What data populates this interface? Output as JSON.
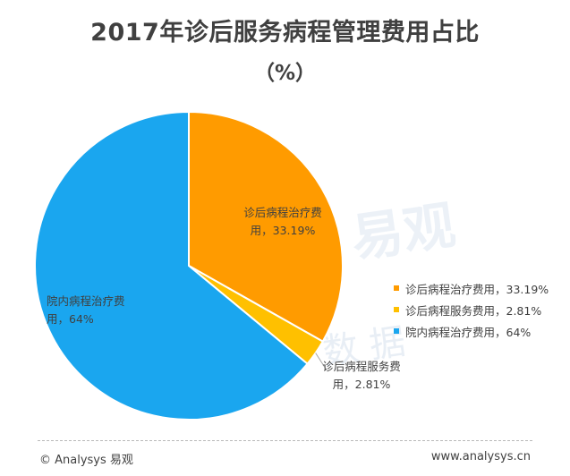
{
  "chart_data": {
    "type": "pie",
    "title": "2017年诊后服务病程管理费用占比",
    "subtitle": "（%）",
    "legend_position": "right",
    "slices": [
      {
        "label": "诊后病程治疗费用",
        "value": 33.19,
        "value_text": "33.19%",
        "color": "#ff9b00",
        "label_line1": "诊后病程治疗费",
        "label_line2": "用，33.19%"
      },
      {
        "label": "诊后病程服务费用",
        "value": 2.81,
        "value_text": "2.81%",
        "color": "#ffc000",
        "label_line1": "诊后病程服务费",
        "label_line2": "用，2.81%"
      },
      {
        "label": "院内病程治疗费用",
        "value": 64,
        "value_text": "64%",
        "color": "#1aa6ef",
        "label_line1": "院内病程治疗费",
        "label_line2": "用，64%"
      }
    ]
  },
  "legend": [
    {
      "text": "诊后病程治疗费用，33.19%",
      "color": "#ff9b00"
    },
    {
      "text": "诊后病程服务费用，2.81%",
      "color": "#ffc000"
    },
    {
      "text": "院内病程治疗费用，64%",
      "color": "#1aa6ef"
    }
  ],
  "watermark": {
    "main": "易观",
    "sub": "数 据"
  },
  "footer": {
    "left": "© Analysys 易观",
    "right": "www.analysys.cn"
  }
}
